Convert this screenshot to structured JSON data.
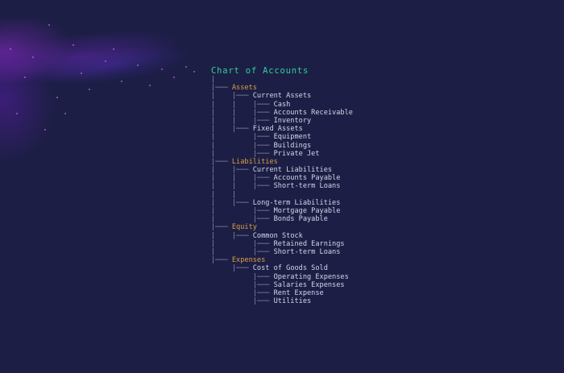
{
  "title": "Chart of Accounts",
  "colors": {
    "background": "#1d1e46",
    "title": "#2fd19b",
    "category": "#d9a03f",
    "item": "#d3d6e6",
    "connector": "#8b8fa8"
  },
  "rows": [
    {
      "prefix": "|",
      "label": "",
      "category": false
    },
    {
      "prefix": "|─── ",
      "label": "Assets",
      "category": true
    },
    {
      "prefix": "|    |─── ",
      "label": "Current Assets",
      "category": false
    },
    {
      "prefix": "|    |    |─── ",
      "label": "Cash",
      "category": false
    },
    {
      "prefix": "|    |    |─── ",
      "label": "Accounts Receivable",
      "category": false
    },
    {
      "prefix": "|    |    |─── ",
      "label": "Inventory",
      "category": false
    },
    {
      "prefix": "|    |─── ",
      "label": "Fixed Assets",
      "category": false
    },
    {
      "prefix": "|         |─── ",
      "label": "Equipment",
      "category": false
    },
    {
      "prefix": "|         |─── ",
      "label": "Buildings",
      "category": false
    },
    {
      "prefix": "|         |─── ",
      "label": "Private Jet",
      "category": false
    },
    {
      "prefix": "|─── ",
      "label": "Liabilities",
      "category": true
    },
    {
      "prefix": "|    |─── ",
      "label": "Current Liabilities",
      "category": false
    },
    {
      "prefix": "|    |    |─── ",
      "label": "Accounts Payable",
      "category": false
    },
    {
      "prefix": "|    |    |─── ",
      "label": "Short-term Loans",
      "category": false
    },
    {
      "prefix": "|    |",
      "label": "",
      "category": false
    },
    {
      "prefix": "|    |─── ",
      "label": "Long-term Liabilities",
      "category": false
    },
    {
      "prefix": "|         |─── ",
      "label": "Mortgage Payable",
      "category": false
    },
    {
      "prefix": "|         |─── ",
      "label": "Bonds Payable",
      "category": false
    },
    {
      "prefix": "|─── ",
      "label": "Equity",
      "category": true
    },
    {
      "prefix": "|    |─── ",
      "label": "Common Stock",
      "category": false
    },
    {
      "prefix": "|         |─── ",
      "label": "Retained Earnings",
      "category": false
    },
    {
      "prefix": "|         |─── ",
      "label": "Short-term Loans",
      "category": false
    },
    {
      "prefix": "|─── ",
      "label": "Expenses",
      "category": true
    },
    {
      "prefix": "     |─── ",
      "label": "Cost of Goods Sold",
      "category": false
    },
    {
      "prefix": "          |─── ",
      "label": "Operating Expenses",
      "category": false
    },
    {
      "prefix": "          |─── ",
      "label": "Salaries Expenses",
      "category": false
    },
    {
      "prefix": "          |─── ",
      "label": "Rent Expense",
      "category": false
    },
    {
      "prefix": "          |─── ",
      "label": "Utilities",
      "category": false
    }
  ]
}
